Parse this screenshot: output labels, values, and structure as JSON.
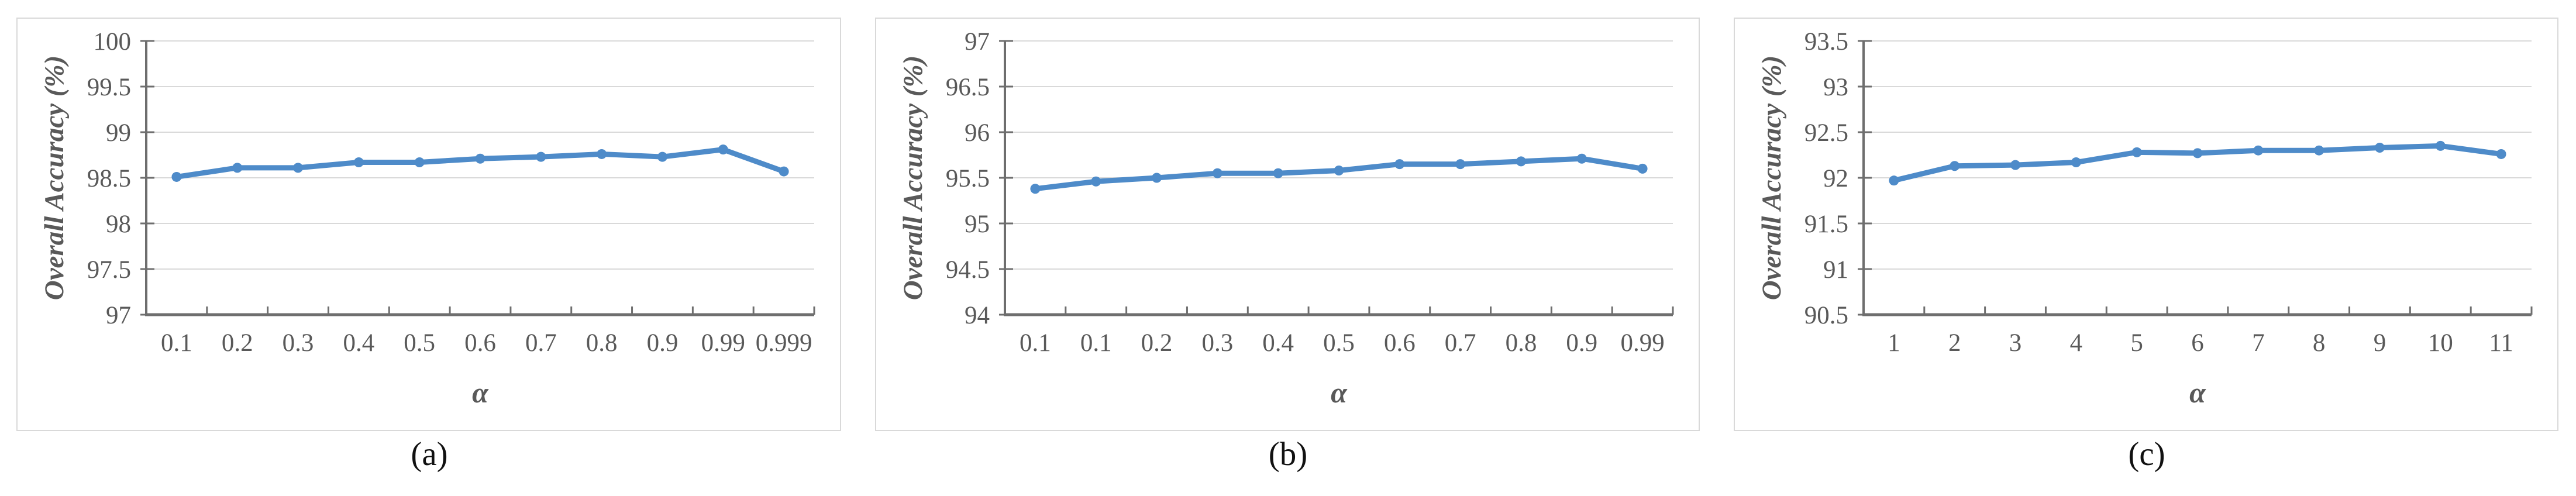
{
  "styles": {
    "accent": "#4E8BC9",
    "grid": "#D9D9D9",
    "axis": "#6E6E6E",
    "tick_text": "#595959",
    "title_text": "#595959",
    "caption_color": "#111111",
    "card_border": "#D9D9D9",
    "background": "#FFFFFF"
  },
  "chart_data": [
    {
      "type": "line",
      "panel_label": "(a)",
      "xlabel": "α",
      "ylabel": "Overall Accuracy (%)",
      "categories": [
        "0.1",
        "0.2",
        "0.3",
        "0.4",
        "0.5",
        "0.6",
        "0.7",
        "0.8",
        "0.9",
        "0.99",
        "0.999"
      ],
      "values": [
        98.51,
        98.61,
        98.61,
        98.67,
        98.67,
        98.71,
        98.73,
        98.76,
        98.73,
        98.81,
        98.57
      ],
      "ylim": [
        97,
        100
      ],
      "ytick_labels": [
        "97",
        "97.5",
        "98",
        "98.5",
        "99",
        "99.5",
        "100"
      ],
      "grid": true,
      "legend": "none",
      "marker": "circle"
    },
    {
      "type": "line",
      "panel_label": "(b)",
      "xlabel": "α",
      "ylabel": "Overall Accuracy (%)",
      "categories": [
        "0.1",
        "0.1",
        "0.2",
        "0.3",
        "0.4",
        "0.5",
        "0.6",
        "0.7",
        "0.8",
        "0.9",
        "0.99"
      ],
      "values": [
        95.38,
        95.46,
        95.5,
        95.55,
        95.55,
        95.58,
        95.65,
        95.65,
        95.68,
        95.71,
        95.6
      ],
      "ylim": [
        94,
        97
      ],
      "ytick_labels": [
        "94",
        "94.5",
        "95",
        "95.5",
        "96",
        "96.5",
        "97"
      ],
      "grid": true,
      "legend": "none",
      "marker": "circle"
    },
    {
      "type": "line",
      "panel_label": "(c)",
      "xlabel": "α",
      "ylabel": "Overall Accuracy (%)",
      "categories": [
        "1",
        "2",
        "3",
        "4",
        "5",
        "6",
        "7",
        "8",
        "9",
        "10",
        "11"
      ],
      "values": [
        91.97,
        92.13,
        92.14,
        92.17,
        92.28,
        92.27,
        92.3,
        92.3,
        92.33,
        92.35,
        92.26
      ],
      "ylim": [
        90.5,
        93.5
      ],
      "ytick_labels": [
        "90.5",
        "91",
        "91.5",
        "92",
        "92.5",
        "93",
        "93.5"
      ],
      "grid": true,
      "legend": "none",
      "marker": "circle"
    }
  ]
}
